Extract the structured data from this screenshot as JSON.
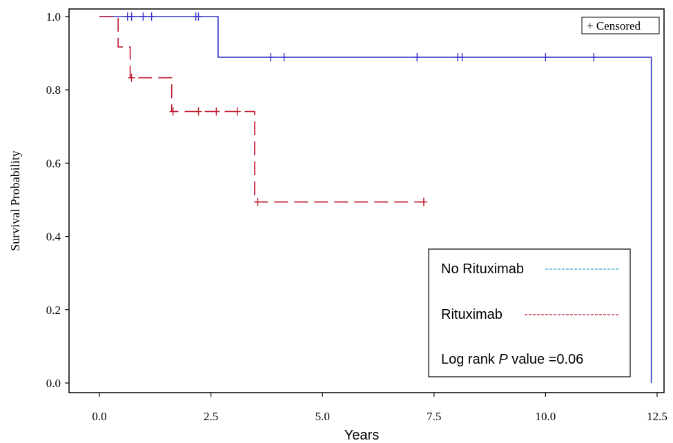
{
  "chart_data": {
    "type": "line",
    "subtype": "kaplan-meier",
    "xlabel": "Years",
    "ylabel": "Survival Probability",
    "xlim": [
      0,
      12.5
    ],
    "ylim": [
      0,
      1
    ],
    "x_ticks": [
      "0.0",
      "2.5",
      "5.0",
      "7.5",
      "10.0",
      "12.5"
    ],
    "y_ticks": [
      "0.0",
      "0.2",
      "0.4",
      "0.6",
      "0.8",
      "1.0"
    ],
    "censor_key": "+ Censored",
    "series": [
      {
        "name": "No Rituximab",
        "color": "#3333cc",
        "legend_line_color": "#33aacc",
        "style": "solid",
        "steps": [
          {
            "x": 0.0,
            "y": 1.0
          },
          {
            "x": 2.66,
            "y": 0.889
          },
          {
            "x": 12.37,
            "y": 0.0
          }
        ],
        "censored": [
          {
            "x": 0.63,
            "y": 1.0
          },
          {
            "x": 0.72,
            "y": 1.0
          },
          {
            "x": 0.98,
            "y": 1.0
          },
          {
            "x": 1.17,
            "y": 1.0
          },
          {
            "x": 2.16,
            "y": 1.0
          },
          {
            "x": 2.22,
            "y": 1.0
          },
          {
            "x": 3.84,
            "y": 0.889
          },
          {
            "x": 4.14,
            "y": 0.889
          },
          {
            "x": 7.12,
            "y": 0.889
          },
          {
            "x": 8.03,
            "y": 0.889
          },
          {
            "x": 8.13,
            "y": 0.889
          },
          {
            "x": 10.0,
            "y": 0.889
          },
          {
            "x": 11.08,
            "y": 0.889
          }
        ],
        "end_x": 12.37
      },
      {
        "name": "Rituximab",
        "color": "#c0182c",
        "legend_line_color": "#c0182c",
        "style": "dashed",
        "steps": [
          {
            "x": 0.0,
            "y": 1.0
          },
          {
            "x": 0.42,
            "y": 0.917
          },
          {
            "x": 0.69,
            "y": 0.833
          },
          {
            "x": 1.62,
            "y": 0.741
          },
          {
            "x": 3.48,
            "y": 0.494
          }
        ],
        "censored": [
          {
            "x": 0.72,
            "y": 0.833
          },
          {
            "x": 1.65,
            "y": 0.741
          },
          {
            "x": 2.22,
            "y": 0.741
          },
          {
            "x": 2.62,
            "y": 0.741
          },
          {
            "x": 3.09,
            "y": 0.741
          },
          {
            "x": 3.55,
            "y": 0.494
          },
          {
            "x": 7.27,
            "y": 0.494
          }
        ],
        "end_x": 7.3
      }
    ],
    "legend": {
      "position": "bottom-right",
      "entries": [
        "No Rituximab",
        "Rituximab "
      ],
      "note_prefix": "Log rank ",
      "note_italic": "P",
      "note_suffix": " value =0.06"
    }
  }
}
